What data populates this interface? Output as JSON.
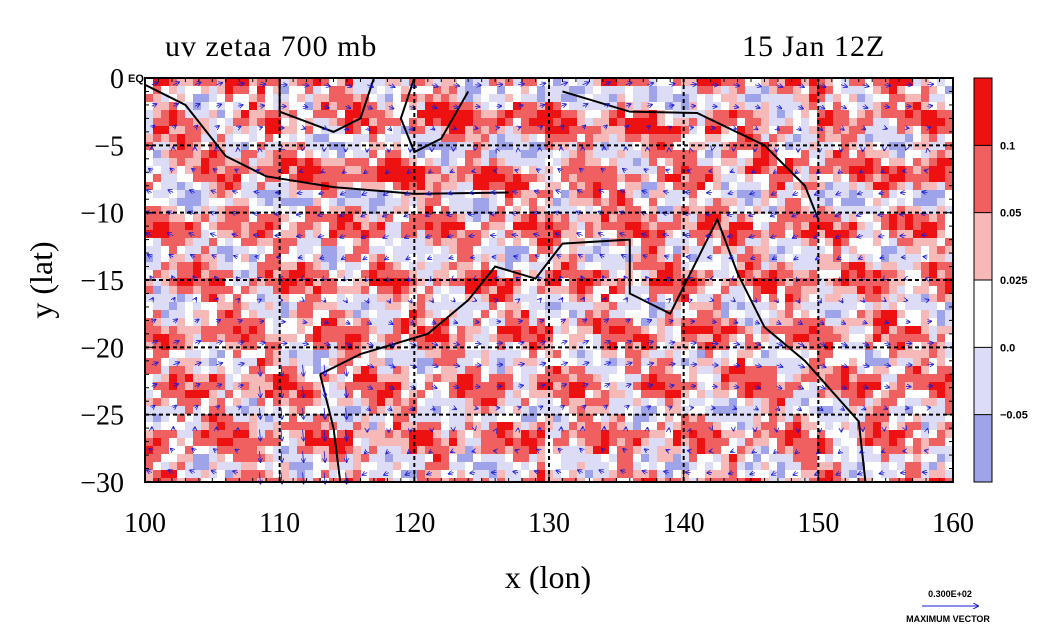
{
  "chart_data": {
    "type": "heatmap",
    "title": "uv zetaa 700 mb",
    "date": "15 Jan 12Z",
    "xlabel": "x (lon)",
    "ylabel": "y (lat)",
    "xlim": [
      100,
      160
    ],
    "ylim": [
      -30,
      0
    ],
    "x_ticks": [
      "100",
      "110",
      "120",
      "130",
      "140",
      "150",
      "160"
    ],
    "y_ticks": [
      "0 EQ",
      "−5",
      "−10",
      "−15",
      "−20",
      "−25",
      "−30"
    ],
    "x_tick_values": [
      100,
      110,
      120,
      130,
      140,
      150,
      160
    ],
    "y_tick_values": [
      0,
      -5,
      -10,
      -15,
      -20,
      -25,
      -30
    ],
    "grid": true,
    "colorbar": {
      "labels": [
        "0.1",
        "0.05",
        "0.025",
        "0.0",
        "−0.05"
      ],
      "label_values": [
        0.1,
        0.05,
        0.025,
        0.0,
        -0.05
      ],
      "bins": [
        {
          "range": [
            0.1,
            0.15
          ],
          "color": "#ee1111"
        },
        {
          "range": [
            0.05,
            0.1
          ],
          "color": "#f06060"
        },
        {
          "range": [
            0.025,
            0.05
          ],
          "color": "#f7b8b8"
        },
        {
          "range": [
            0.0,
            0.025
          ],
          "color": "#ffffff"
        },
        {
          "range": [
            -0.05,
            0.0
          ],
          "color": "#dcdcf6"
        },
        {
          "range": [
            -0.1,
            -0.05
          ],
          "color": "#9fa3ea"
        }
      ]
    },
    "vector_legend": {
      "value": "0.300E+02",
      "label": "MAXIMUM VECTOR"
    },
    "colors": {
      "vector": "#1a1ad8",
      "contour": "#dd0000",
      "coast": "#000000"
    }
  }
}
